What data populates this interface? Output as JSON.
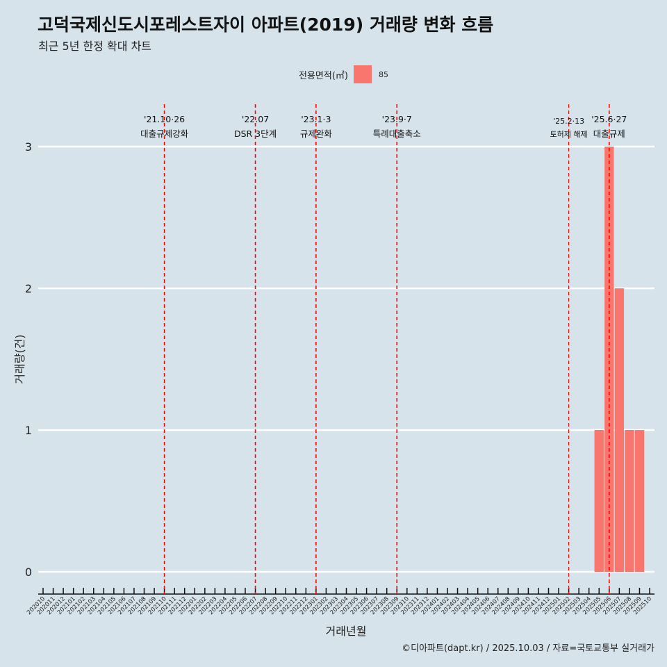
{
  "title": "고덕국제신도시포레스트자이 아파트(2019) 거래량 변화 흐름",
  "subtitle": "최근 5년 한정 확대 차트",
  "caption": "©디아파트(dapt.kr) / 2025.10.03 / 자료=국토교통부 실거래가",
  "colors": {
    "bar": "#f8766d",
    "vline": "#ff0000",
    "grid": "#ffffff"
  },
  "chart_data": {
    "type": "bar",
    "xlabel": "거래년월",
    "ylabel": "거래량(건)",
    "ylim": [
      0,
      3
    ],
    "yticks": [
      0,
      1,
      2,
      3
    ],
    "legend": {
      "title": "전용면적(㎡)",
      "entries": [
        "85"
      ],
      "placement": "top"
    },
    "categories": [
      "202010",
      "202011",
      "202012",
      "202101",
      "202102",
      "202103",
      "202104",
      "202105",
      "202106",
      "202107",
      "202108",
      "202109",
      "202110",
      "202111",
      "202112",
      "202201",
      "202202",
      "202203",
      "202204",
      "202205",
      "202206",
      "202207",
      "202208",
      "202209",
      "202210",
      "202211",
      "202212",
      "202301",
      "202302",
      "202303",
      "202304",
      "202305",
      "202306",
      "202307",
      "202308",
      "202309",
      "202310",
      "202311",
      "202312",
      "202401",
      "202402",
      "202403",
      "202404",
      "202405",
      "202406",
      "202407",
      "202408",
      "202409",
      "202410",
      "202411",
      "202412",
      "202501",
      "202502",
      "202503",
      "202504",
      "202505",
      "202506",
      "202507",
      "202508",
      "202509",
      "202510"
    ],
    "series": [
      {
        "name": "85",
        "points": [
          {
            "x": "202505",
            "y": 1
          },
          {
            "x": "202506",
            "y": 3
          },
          {
            "x": "202507",
            "y": 2
          },
          {
            "x": "202508",
            "y": 1
          },
          {
            "x": "202509",
            "y": 1
          }
        ]
      }
    ],
    "annotations": [
      {
        "x": "202110",
        "date": "'21.10·26",
        "label": "대출규제강화",
        "small": false
      },
      {
        "x": "202207",
        "date": "'22.07",
        "label": "DSR 3단계",
        "small": false
      },
      {
        "x": "202301",
        "date": "'23.1·3",
        "label": "규제완화",
        "small": false
      },
      {
        "x": "202309",
        "date": "'23.9·7",
        "label": "특례대출축소",
        "small": false
      },
      {
        "x": "202502",
        "date": "'25.2·13",
        "label": "토허제 해제",
        "small": true
      },
      {
        "x": "202506",
        "date": "'25.6·27",
        "label": "대출규제",
        "small": false
      }
    ]
  }
}
